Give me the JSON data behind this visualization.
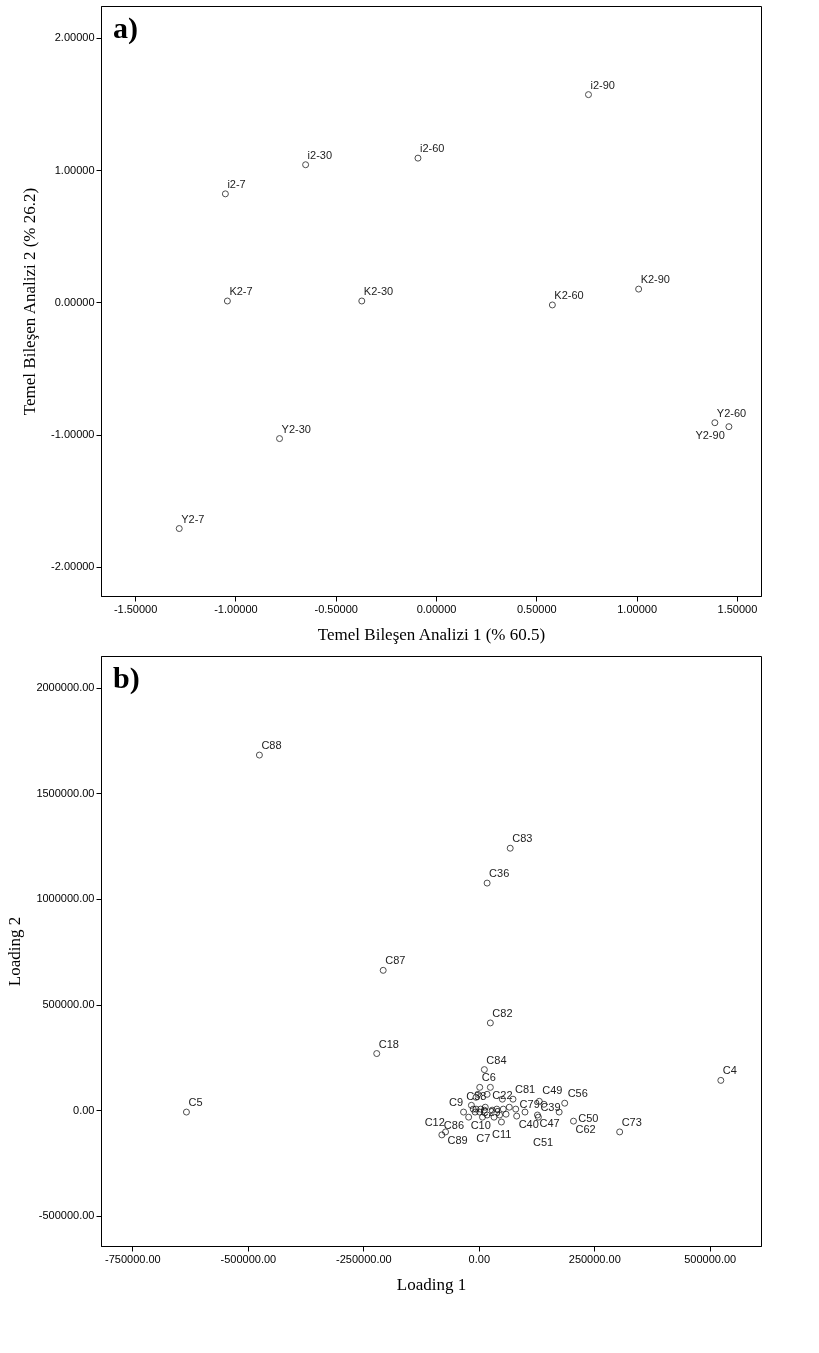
{
  "chart_data": [
    {
      "type": "scatter",
      "xlabel": "Temel Bileşen Analizi 1 (% 60.5)",
      "ylabel": "Temel Bileşen Analizi 2 (% 26.2)",
      "marker": "circle",
      "xlim": [
        -1.67,
        1.62
      ],
      "ylim": [
        -2.22,
        2.24
      ],
      "xticks": [
        {
          "value": -1.5,
          "label": "-1.50000"
        },
        {
          "value": -1.0,
          "label": "-1.00000"
        },
        {
          "value": -0.5,
          "label": "-0.50000"
        },
        {
          "value": 0,
          "label": "0.00000"
        },
        {
          "value": 0.5,
          "label": "0.50000"
        },
        {
          "value": 1.0,
          "label": "1.00000"
        },
        {
          "value": 1.5,
          "label": "1.50000"
        }
      ],
      "yticks": [
        {
          "value": -2,
          "label": "-2.00000"
        },
        {
          "value": -1,
          "label": "-1.00000"
        },
        {
          "value": 0,
          "label": "0.00000"
        },
        {
          "value": 1,
          "label": "1.00000"
        },
        {
          "value": 2,
          "label": "2.00000"
        }
      ],
      "series": [
        {
          "color": "#000000",
          "x": [
            -1.05,
            -1.04,
            -0.65,
            -0.37,
            -0.09,
            0.58,
            0.76,
            1.01,
            -1.28,
            -0.78,
            1.39,
            1.46
          ],
          "values": [
            0.82,
            0.01,
            1.04,
            0.01,
            1.09,
            -0.02,
            1.57,
            0.1,
            -1.71,
            -1.03,
            -0.91,
            -0.94
          ]
        }
      ],
      "annotations": [
        "a)",
        {
          "text": "i2-7",
          "x": -1.05,
          "y": 0.82
        },
        {
          "text": "K2-7",
          "x": -1.04,
          "y": 0.01
        },
        {
          "text": "i2-30",
          "x": -0.65,
          "y": 1.04
        },
        {
          "text": "K2-30",
          "x": -0.37,
          "y": 0.01
        },
        {
          "text": "i2-60",
          "x": -0.09,
          "y": 1.09
        },
        {
          "text": "K2-60",
          "x": 0.58,
          "y": -0.02
        },
        {
          "text": "i2-90",
          "x": 0.76,
          "y": 1.57
        },
        {
          "text": "K2-90",
          "x": 1.01,
          "y": 0.1
        },
        {
          "text": "Y2-7",
          "x": -1.28,
          "y": -1.71
        },
        {
          "text": "Y2-30",
          "x": -0.78,
          "y": -1.03
        },
        {
          "text": "Y2-60",
          "x": 1.39,
          "y": -0.91
        },
        {
          "text": "Y2-90",
          "x": 1.46,
          "y": -0.94
        }
      ]
    },
    {
      "type": "scatter",
      "xlabel": "Loading 1",
      "ylabel": "Loading 2",
      "marker": "circle",
      "xlim": [
        -818000,
        611000
      ],
      "ylim": [
        -643000,
        2150000
      ],
      "xticks": [
        {
          "value": -750000,
          "label": "-750000.00"
        },
        {
          "value": -500000,
          "label": "-500000.00"
        },
        {
          "value": -250000,
          "label": "-250000.00"
        },
        {
          "value": 0,
          "label": "0.00"
        },
        {
          "value": 250000,
          "label": "250000.00"
        },
        {
          "value": 500000,
          "label": "500000.00"
        }
      ],
      "yticks": [
        {
          "value": -500000,
          "label": "-500000.00"
        },
        {
          "value": 0,
          "label": "0.00"
        },
        {
          "value": 500000,
          "label": "500000.00"
        },
        {
          "value": 1000000,
          "label": "1000000.00"
        },
        {
          "value": 1500000,
          "label": "1500000.00"
        },
        {
          "value": 2000000,
          "label": "2000000.00"
        }
      ],
      "series": [
        {
          "color": "#000000",
          "x": [
            -475000,
            68000,
            18000,
            -207000,
            25000,
            -221000,
            524000,
            -633000,
            12000,
            2000,
            25000,
            -2000,
            18000,
            51000,
            74000,
            131000,
            141000,
            186000,
            174000,
            205000,
            305000,
            127000,
            129000,
            100000,
            82000,
            49000,
            -80000,
            -72000,
            -22000,
            -12000,
            -6000,
            4000,
            12000,
            2000,
            -8000,
            14000,
            29000,
            39000,
            53000,
            66000,
            80000,
            33000,
            18000,
            -6000,
            -33000,
            -16000,
            8000,
            45000,
            59000
          ],
          "values": [
            1681000,
            1240000,
            1075000,
            662000,
            413000,
            268000,
            141000,
            -9000,
            192000,
            108000,
            108000,
            75000,
            75000,
            52000,
            52000,
            42000,
            28000,
            33000,
            -9000,
            -52000,
            -103000,
            -23000,
            -33000,
            -9000,
            -28000,
            -56000,
            -117000,
            -103000,
            -33000,
            5000,
            5000,
            5000,
            0,
            -9000,
            -9000,
            14000,
            0,
            5000,
            5000,
            14000,
            5000,
            -33000,
            -23000,
            61000,
            -9000,
            23000,
            -33000,
            -23000,
            -19000
          ]
        }
      ],
      "annotations": [
        "b)",
        {
          "text": "C88",
          "x": -475000,
          "y": 1681000
        },
        {
          "text": "C83",
          "x": 68000,
          "y": 1240000
        },
        {
          "text": "C36",
          "x": 18000,
          "y": 1075000
        },
        {
          "text": "C87",
          "x": -207000,
          "y": 662000
        },
        {
          "text": "C82",
          "x": 25000,
          "y": 413000
        },
        {
          "text": "C18",
          "x": -221000,
          "y": 268000
        },
        {
          "text": "C4",
          "x": 524000,
          "y": 141000
        },
        {
          "text": "C5",
          "x": -633000,
          "y": -9000
        },
        {
          "text": "C6",
          "x": 2000,
          "y": 108000
        },
        {
          "text": "C22",
          "x": 25000,
          "y": 108000
        },
        {
          "text": "C81",
          "x": 74000,
          "y": 52000
        },
        {
          "text": "C84",
          "x": 12000,
          "y": 192000
        },
        {
          "text": "C38",
          "x": 18000,
          "y": 103000
        },
        {
          "text": "C79",
          "x": 84000,
          "y": 66000
        },
        {
          "text": "C49",
          "x": 133000,
          "y": 47000
        },
        {
          "text": "C56",
          "x": 188000,
          "y": 33000
        },
        {
          "text": "C9",
          "x": -33000,
          "y": -9000
        },
        {
          "text": "C40",
          "x": 82000,
          "y": -28000
        },
        {
          "text": "C50",
          "x": 211000,
          "y": -84000
        },
        {
          "text": "C73",
          "x": 305000,
          "y": -103000
        },
        {
          "text": "C86",
          "x": -80000,
          "y": -117000
        },
        {
          "text": "C12",
          "x": -72000,
          "y": -103000
        },
        {
          "text": "C10",
          "x": -22000,
          "y": -33000
        },
        {
          "text": "C29",
          "x": 49000,
          "y": -56000
        },
        {
          "text": "C39",
          "x": 129000,
          "y": -33000
        },
        {
          "text": "C62",
          "x": 205000,
          "y": -52000
        },
        {
          "text": "C89",
          "x": -72000,
          "y": -103000
        },
        {
          "text": "C7",
          "x": 8000,
          "y": -33000
        },
        {
          "text": "C51",
          "x": 100000,
          "y": -9000
        },
        {
          "text": "C47",
          "x": 127000,
          "y": -23000
        },
        {
          "text": "C11",
          "x": 18000,
          "y": -23000
        }
      ]
    }
  ]
}
